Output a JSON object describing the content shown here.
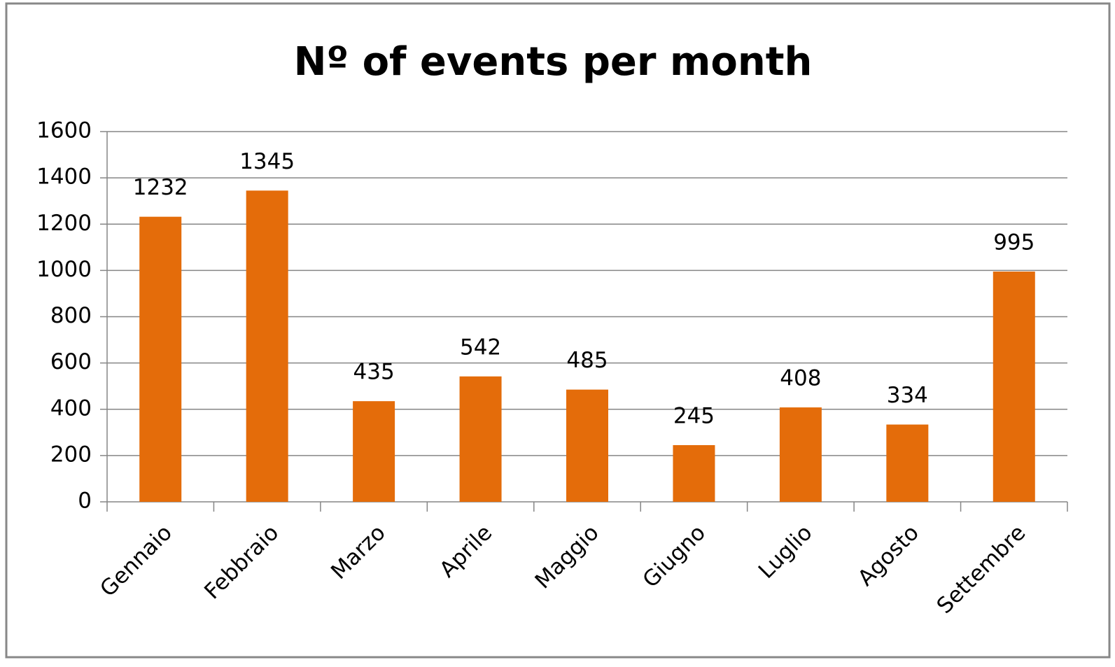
{
  "chart_data": {
    "type": "bar",
    "title": "Nº of events per month",
    "categories": [
      "Gennaio",
      "Febbraio",
      "Marzo",
      "Aprile",
      "Maggio",
      "Giugno",
      "Luglio",
      "Agosto",
      "Settembre"
    ],
    "values": [
      1232,
      1345,
      435,
      542,
      485,
      245,
      408,
      334,
      995
    ],
    "color": "#e46c0a",
    "ylim": [
      0,
      1600
    ],
    "yticks": [
      0,
      200,
      400,
      600,
      800,
      1000,
      1200,
      1400,
      1600
    ],
    "grid": true
  }
}
